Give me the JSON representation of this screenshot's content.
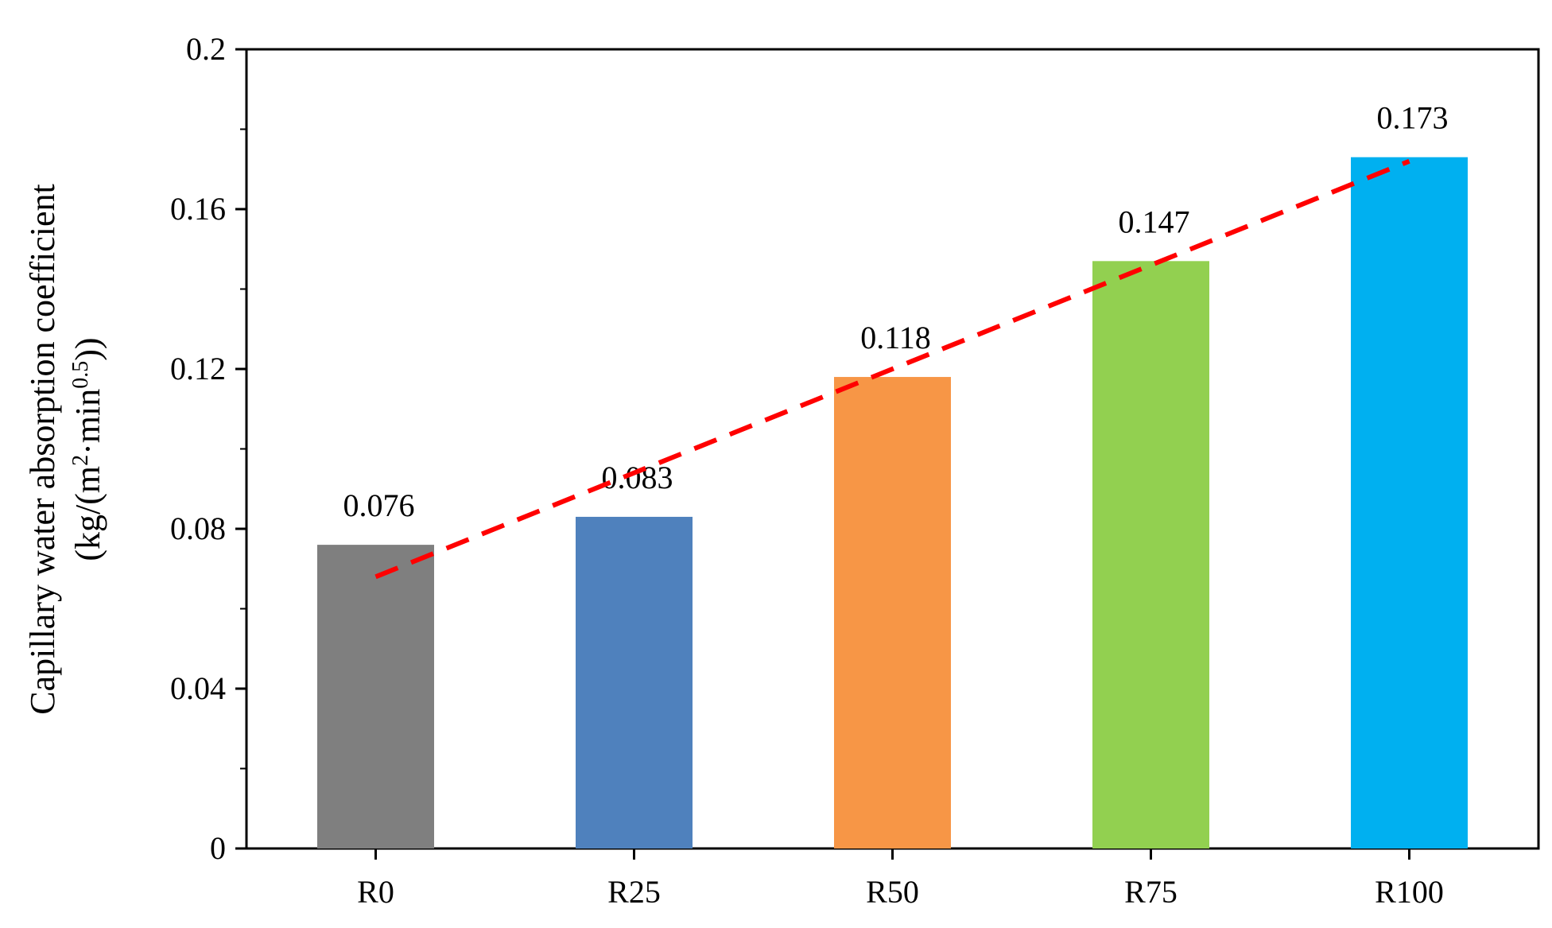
{
  "chart_data": {
    "type": "bar",
    "categories": [
      "R0",
      "R25",
      "R50",
      "R75",
      "R100"
    ],
    "values": [
      0.076,
      0.083,
      0.118,
      0.147,
      0.173
    ],
    "data_labels": [
      "0.076",
      "0.083",
      "0.118",
      "0.147",
      "0.173"
    ],
    "bar_colors": [
      "#7f7f7f",
      "#4f81bd",
      "#f79646",
      "#92d050",
      "#00b0f0"
    ],
    "ylim": [
      0,
      0.2
    ],
    "yticks": [
      0,
      0.04,
      0.08,
      0.12,
      0.16,
      0.2
    ],
    "ytick_labels": [
      "0",
      "0.04",
      "0.08",
      "0.12",
      "0.16",
      "0.2"
    ],
    "ylabel": {
      "line1": "Capillary water absorption coefficient",
      "line2_prefix": "(kg/(m",
      "line2_sup1": "2",
      "line2_mid": "·min",
      "line2_sup2": "0.5",
      "line2_suffix": "))"
    },
    "xlabel": "",
    "title": "",
    "legend": "none",
    "grid": false,
    "trendline": {
      "style": "dashed",
      "color": "#ff0000",
      "start": {
        "category": "R0",
        "value": 0.068
      },
      "end": {
        "category": "R100",
        "value": 0.172
      }
    }
  }
}
